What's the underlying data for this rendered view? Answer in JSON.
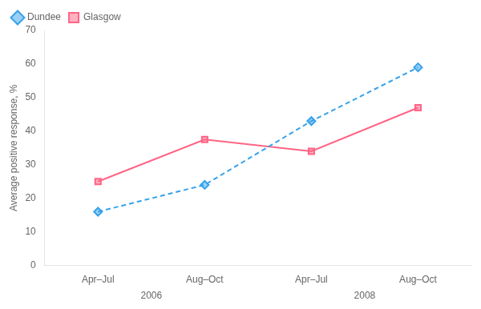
{
  "chart_data": {
    "type": "line",
    "categories": [
      "Apr–Jul",
      "Aug–Oct",
      "Apr–Jul",
      "Aug–Oct"
    ],
    "series": [
      {
        "name": "Dundee",
        "values": [
          16,
          24,
          43,
          59
        ],
        "marker": "diamond",
        "line_style": "dashed"
      },
      {
        "name": "Glasgow",
        "values": [
          25,
          37.5,
          34,
          47
        ],
        "marker": "square",
        "line_style": "solid"
      }
    ],
    "ylabel": "Average positive response, %",
    "ylim": [
      0,
      70
    ],
    "yticks": [
      0,
      10,
      20,
      30,
      40,
      50,
      60,
      70
    ],
    "annotations": [
      "2006",
      "2008"
    ],
    "legend": "upper left",
    "grid": false
  }
}
